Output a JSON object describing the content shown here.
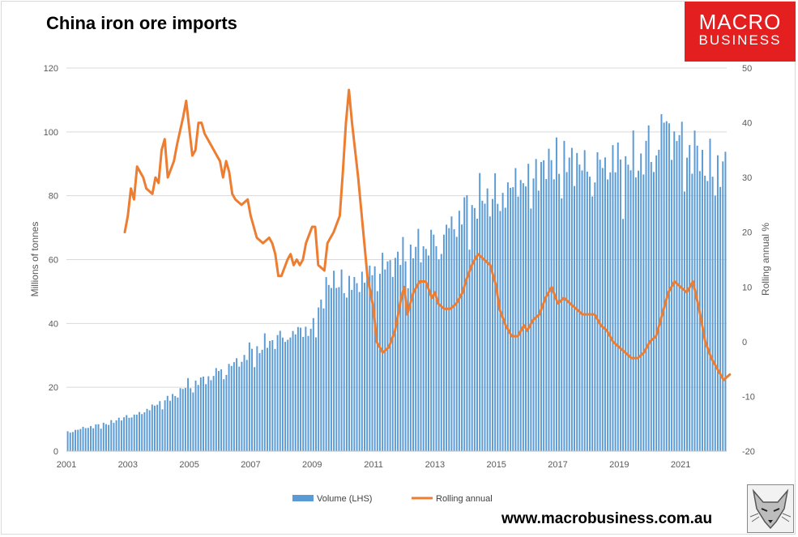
{
  "logo": {
    "line1": "MACRO",
    "line2": "BUSINESS"
  },
  "footer": {
    "url": "www.macrobusiness.com.au"
  },
  "chart_data": {
    "type": "bar+line",
    "title": "China iron ore imports",
    "ylabel": "Millions of tonnes",
    "y2label": "Rolling annual %",
    "ylim": [
      0,
      120
    ],
    "y2lim": [
      -20,
      50
    ],
    "yticks": [
      "0",
      "20",
      "40",
      "60",
      "80",
      "100",
      "120"
    ],
    "y2ticks": [
      "-20",
      "-10",
      "0",
      "10",
      "20",
      "30",
      "40",
      "50"
    ],
    "xticks": [
      "2001",
      "2003",
      "2005",
      "2007",
      "2009",
      "2011",
      "2013",
      "2015",
      "2017",
      "2019",
      "2021"
    ],
    "x_range": [
      2001.0,
      2022.5
    ],
    "colors": {
      "bar": "#5b9bd5",
      "line": "#ed7d31",
      "grid": "#d9d9d9"
    },
    "series": [
      {
        "name": "Volume (LHS)",
        "kind": "bar",
        "anchors": [
          [
            2001.0,
            6
          ],
          [
            2001.5,
            7
          ],
          [
            2002.0,
            8
          ],
          [
            2002.5,
            9
          ],
          [
            2003.0,
            11
          ],
          [
            2003.5,
            12
          ],
          [
            2004.0,
            15
          ],
          [
            2004.5,
            17
          ],
          [
            2005.0,
            21
          ],
          [
            2005.5,
            22
          ],
          [
            2006.0,
            25
          ],
          [
            2006.5,
            27
          ],
          [
            2007.0,
            31
          ],
          [
            2007.5,
            33
          ],
          [
            2008.0,
            36
          ],
          [
            2008.5,
            37
          ],
          [
            2009.0,
            38
          ],
          [
            2009.5,
            52
          ],
          [
            2010.0,
            53
          ],
          [
            2010.5,
            52
          ],
          [
            2011.0,
            57
          ],
          [
            2011.5,
            58
          ],
          [
            2012.0,
            61
          ],
          [
            2012.5,
            63
          ],
          [
            2013.0,
            65
          ],
          [
            2013.5,
            69
          ],
          [
            2014.0,
            75
          ],
          [
            2014.5,
            78
          ],
          [
            2015.0,
            80
          ],
          [
            2015.5,
            82
          ],
          [
            2016.0,
            85
          ],
          [
            2016.5,
            88
          ],
          [
            2017.0,
            91
          ],
          [
            2017.5,
            90
          ],
          [
            2018.0,
            88
          ],
          [
            2018.5,
            89
          ],
          [
            2019.0,
            90
          ],
          [
            2019.5,
            89
          ],
          [
            2020.0,
            94
          ],
          [
            2020.5,
            101
          ],
          [
            2021.0,
            96
          ],
          [
            2021.5,
            92
          ],
          [
            2022.0,
            88
          ],
          [
            2022.5,
            90
          ]
        ],
        "noise_amplitude": 0.08
      },
      {
        "name": "Rolling annual",
        "kind": "line",
        "points": [
          [
            2002.9,
            20
          ],
          [
            2003.0,
            23
          ],
          [
            2003.1,
            28
          ],
          [
            2003.2,
            26
          ],
          [
            2003.3,
            32
          ],
          [
            2003.5,
            30
          ],
          [
            2003.6,
            28
          ],
          [
            2003.8,
            27
          ],
          [
            2003.9,
            30
          ],
          [
            2004.0,
            29
          ],
          [
            2004.1,
            35
          ],
          [
            2004.2,
            37
          ],
          [
            2004.3,
            30
          ],
          [
            2004.5,
            33
          ],
          [
            2004.6,
            36
          ],
          [
            2004.8,
            41
          ],
          [
            2004.9,
            44
          ],
          [
            2005.1,
            34
          ],
          [
            2005.2,
            35
          ],
          [
            2005.3,
            40
          ],
          [
            2005.4,
            40
          ],
          [
            2005.5,
            38
          ],
          [
            2005.7,
            36
          ],
          [
            2005.9,
            34
          ],
          [
            2006.0,
            33
          ],
          [
            2006.1,
            30
          ],
          [
            2006.2,
            33
          ],
          [
            2006.3,
            31
          ],
          [
            2006.4,
            27
          ],
          [
            2006.5,
            26
          ],
          [
            2006.7,
            25
          ],
          [
            2006.9,
            26
          ],
          [
            2007.0,
            23
          ],
          [
            2007.2,
            19
          ],
          [
            2007.4,
            18
          ],
          [
            2007.6,
            19
          ],
          [
            2007.7,
            18
          ],
          [
            2007.8,
            16
          ],
          [
            2007.9,
            12
          ],
          [
            2008.0,
            12
          ],
          [
            2008.2,
            15
          ],
          [
            2008.3,
            16
          ],
          [
            2008.4,
            14
          ],
          [
            2008.5,
            15
          ],
          [
            2008.6,
            14
          ],
          [
            2008.7,
            15
          ],
          [
            2008.8,
            18
          ],
          [
            2009.0,
            21
          ],
          [
            2009.1,
            21
          ],
          [
            2009.2,
            14
          ],
          [
            2009.4,
            13
          ],
          [
            2009.5,
            18
          ],
          [
            2009.7,
            20
          ],
          [
            2009.9,
            23
          ],
          [
            2010.0,
            31
          ],
          [
            2010.1,
            40
          ],
          [
            2010.2,
            46
          ],
          [
            2010.3,
            40
          ],
          [
            2010.5,
            30
          ],
          [
            2010.7,
            18
          ],
          [
            2010.8,
            12
          ],
          [
            2011.0,
            6
          ],
          [
            2011.1,
            0
          ],
          [
            2011.3,
            -2
          ],
          [
            2011.5,
            -1
          ],
          [
            2011.7,
            2
          ],
          [
            2011.9,
            8
          ],
          [
            2012.0,
            10
          ],
          [
            2012.1,
            5
          ],
          [
            2012.3,
            9
          ],
          [
            2012.5,
            11
          ],
          [
            2012.7,
            11
          ],
          [
            2012.9,
            8
          ],
          [
            2013.0,
            9
          ],
          [
            2013.1,
            7
          ],
          [
            2013.3,
            6
          ],
          [
            2013.5,
            6
          ],
          [
            2013.7,
            7
          ],
          [
            2013.9,
            9
          ],
          [
            2014.0,
            11
          ],
          [
            2014.2,
            14
          ],
          [
            2014.4,
            16
          ],
          [
            2014.6,
            15
          ],
          [
            2014.8,
            14
          ],
          [
            2015.0,
            10
          ],
          [
            2015.1,
            6
          ],
          [
            2015.3,
            3
          ],
          [
            2015.5,
            1
          ],
          [
            2015.7,
            1
          ],
          [
            2015.9,
            3
          ],
          [
            2016.0,
            2
          ],
          [
            2016.2,
            4
          ],
          [
            2016.4,
            5
          ],
          [
            2016.6,
            8
          ],
          [
            2016.8,
            10
          ],
          [
            2017.0,
            7
          ],
          [
            2017.2,
            8
          ],
          [
            2017.4,
            7
          ],
          [
            2017.6,
            6
          ],
          [
            2017.8,
            5
          ],
          [
            2018.0,
            5
          ],
          [
            2018.2,
            5
          ],
          [
            2018.4,
            3
          ],
          [
            2018.6,
            2
          ],
          [
            2018.8,
            0
          ],
          [
            2019.0,
            -1
          ],
          [
            2019.2,
            -2
          ],
          [
            2019.4,
            -3
          ],
          [
            2019.6,
            -3
          ],
          [
            2019.8,
            -2
          ],
          [
            2020.0,
            0
          ],
          [
            2020.2,
            1
          ],
          [
            2020.4,
            5
          ],
          [
            2020.6,
            9
          ],
          [
            2020.8,
            11
          ],
          [
            2021.0,
            10
          ],
          [
            2021.2,
            9
          ],
          [
            2021.4,
            11
          ],
          [
            2021.6,
            6
          ],
          [
            2021.8,
            0
          ],
          [
            2022.0,
            -3
          ],
          [
            2022.2,
            -5
          ],
          [
            2022.4,
            -7
          ],
          [
            2022.6,
            -6
          ]
        ]
      }
    ],
    "legend": {
      "placement": "bottom-center",
      "labels": [
        "Volume (LHS)",
        "Rolling annual"
      ]
    }
  }
}
